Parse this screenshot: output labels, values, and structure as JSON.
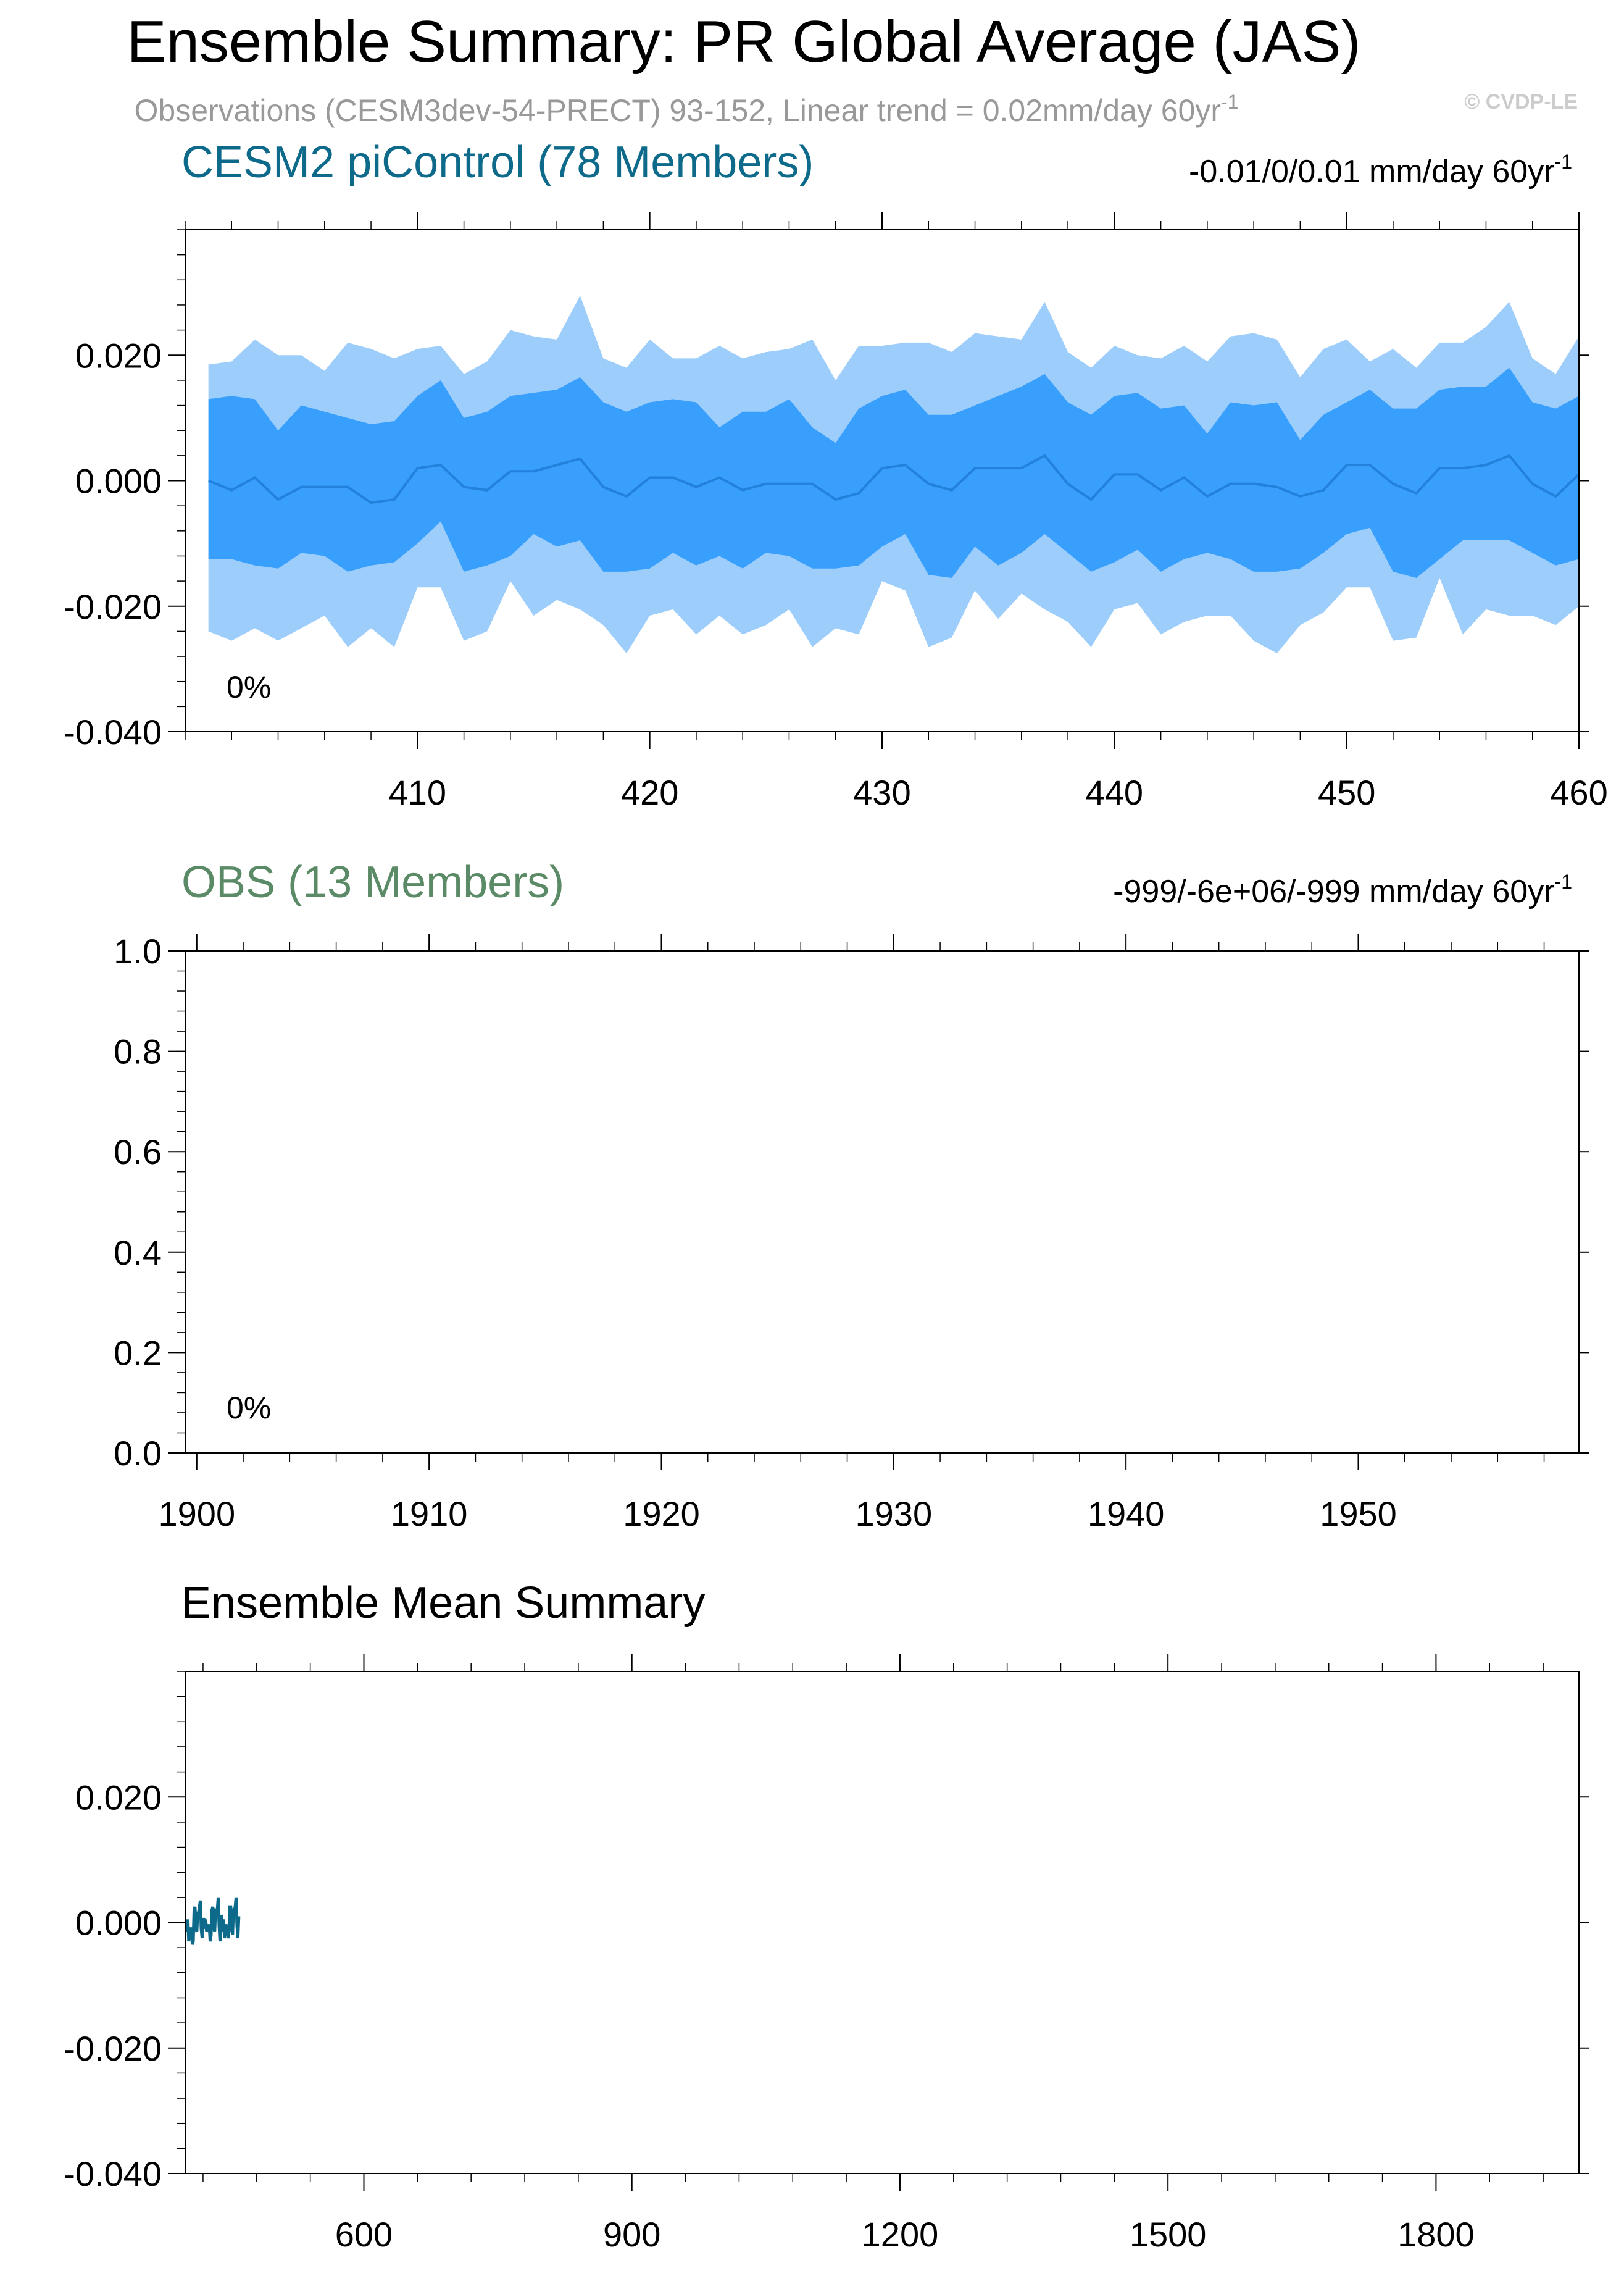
{
  "header": {
    "title": "Ensemble Summary: PR Global Average (JAS)",
    "subtitle": "Observations (CESM3dev-54-PRECT) 93-152, Linear trend = 0.02mm/day 60yr",
    "subtitle_sup": "-1",
    "watermark": "© CVDP-LE"
  },
  "colors": {
    "range_outer": "#9ccdfb",
    "range_inner": "#399ffc",
    "mean_line": "#2381de",
    "model_title": "#0e6a8a",
    "obs_title": "#5b8a66",
    "summary_line": "#0e6a8a",
    "subtitle": "#999999",
    "watermark": "#cccccc"
  },
  "chart_data": [
    {
      "type": "area",
      "title": "CESM2 piControl (78 Members)",
      "trend_label": "-0.01/0/0.01 mm/day 60yr",
      "trend_sup": "-1",
      "annotation": "0%",
      "xlim": [
        400,
        460
      ],
      "ylim": [
        -0.04,
        0.04
      ],
      "x_ticks": [
        410,
        420,
        430,
        440,
        450,
        460
      ],
      "y_ticks": [
        -0.04,
        -0.02,
        0.0,
        0.02
      ],
      "y_tick_labels": [
        "-0.040",
        "-0.020",
        "0.000",
        "0.020"
      ],
      "x": [
        401,
        402,
        403,
        404,
        405,
        406,
        407,
        408,
        409,
        410,
        411,
        412,
        413,
        414,
        415,
        416,
        417,
        418,
        419,
        420,
        421,
        422,
        423,
        424,
        425,
        426,
        427,
        428,
        429,
        430,
        431,
        432,
        433,
        434,
        435,
        436,
        437,
        438,
        439,
        440,
        441,
        442,
        443,
        444,
        445,
        446,
        447,
        448,
        449,
        450,
        451,
        452,
        453,
        454,
        455,
        456,
        457,
        458,
        459,
        460
      ],
      "series": [
        {
          "role": "max",
          "values": [
            0.0185,
            0.019,
            0.0225,
            0.02,
            0.02,
            0.0175,
            0.022,
            0.021,
            0.0195,
            0.021,
            0.0215,
            0.017,
            0.019,
            0.024,
            0.023,
            0.0225,
            0.0295,
            0.0195,
            0.018,
            0.0225,
            0.0195,
            0.0195,
            0.0215,
            0.0195,
            0.0205,
            0.021,
            0.0225,
            0.016,
            0.0215,
            0.0215,
            0.022,
            0.022,
            0.0205,
            0.0235,
            0.023,
            0.0225,
            0.0285,
            0.0205,
            0.018,
            0.0215,
            0.02,
            0.0195,
            0.0215,
            0.019,
            0.023,
            0.0235,
            0.0225,
            0.0165,
            0.021,
            0.0225,
            0.019,
            0.021,
            0.018,
            0.022,
            0.022,
            0.0245,
            0.0285,
            0.0195,
            0.017,
            0.023
          ]
        },
        {
          "role": "upper",
          "values": [
            0.013,
            0.0135,
            0.013,
            0.008,
            0.012,
            0.011,
            0.01,
            0.009,
            0.0095,
            0.0135,
            0.016,
            0.01,
            0.011,
            0.0135,
            0.014,
            0.0145,
            0.0165,
            0.0125,
            0.011,
            0.0125,
            0.013,
            0.0125,
            0.0085,
            0.011,
            0.011,
            0.013,
            0.0085,
            0.006,
            0.0115,
            0.0135,
            0.0145,
            0.0105,
            0.0105,
            0.012,
            0.0135,
            0.015,
            0.017,
            0.0125,
            0.0105,
            0.0135,
            0.014,
            0.0115,
            0.012,
            0.0075,
            0.0125,
            0.012,
            0.0125,
            0.0065,
            0.0105,
            0.0125,
            0.0145,
            0.0115,
            0.0115,
            0.0145,
            0.015,
            0.015,
            0.018,
            0.0125,
            0.0115,
            0.0135
          ]
        },
        {
          "role": "mean",
          "values": [
            0.0,
            -0.0015,
            0.0005,
            -0.003,
            -0.001,
            -0.001,
            -0.001,
            -0.0035,
            -0.003,
            0.002,
            0.0025,
            -0.001,
            -0.0015,
            0.0015,
            0.0015,
            0.0025,
            0.0035,
            -0.001,
            -0.0025,
            0.0005,
            0.0005,
            -0.001,
            0.0005,
            -0.0015,
            -0.0005,
            -0.0005,
            -0.0005,
            -0.003,
            -0.002,
            0.002,
            0.0025,
            -0.0005,
            -0.0015,
            0.002,
            0.002,
            0.002,
            0.004,
            -0.0005,
            -0.003,
            0.001,
            0.001,
            -0.0015,
            0.0005,
            -0.0025,
            -0.0005,
            -0.0005,
            -0.001,
            -0.0025,
            -0.0015,
            0.0025,
            0.0025,
            -0.0005,
            -0.002,
            0.002,
            0.002,
            0.0025,
            0.004,
            -0.0005,
            -0.0025,
            0.001
          ]
        },
        {
          "role": "lower",
          "values": [
            -0.0125,
            -0.0125,
            -0.0135,
            -0.014,
            -0.0115,
            -0.012,
            -0.0145,
            -0.0135,
            -0.013,
            -0.01,
            -0.0065,
            -0.0145,
            -0.0135,
            -0.012,
            -0.0085,
            -0.0105,
            -0.0095,
            -0.0145,
            -0.0145,
            -0.014,
            -0.0115,
            -0.0135,
            -0.012,
            -0.014,
            -0.0115,
            -0.012,
            -0.014,
            -0.014,
            -0.0135,
            -0.0105,
            -0.0085,
            -0.015,
            -0.0155,
            -0.0105,
            -0.0135,
            -0.0115,
            -0.0085,
            -0.0115,
            -0.0145,
            -0.013,
            -0.011,
            -0.0145,
            -0.0125,
            -0.0115,
            -0.0125,
            -0.0145,
            -0.0145,
            -0.014,
            -0.0115,
            -0.0085,
            -0.0075,
            -0.0145,
            -0.0155,
            -0.0125,
            -0.0095,
            -0.0095,
            -0.0095,
            -0.0115,
            -0.0135,
            -0.0125
          ]
        },
        {
          "role": "min",
          "values": [
            -0.024,
            -0.0255,
            -0.0235,
            -0.0255,
            -0.0235,
            -0.0215,
            -0.0265,
            -0.0235,
            -0.0265,
            -0.017,
            -0.017,
            -0.0255,
            -0.024,
            -0.016,
            -0.0215,
            -0.019,
            -0.0205,
            -0.023,
            -0.0275,
            -0.0215,
            -0.0205,
            -0.0245,
            -0.0215,
            -0.0245,
            -0.023,
            -0.0205,
            -0.0265,
            -0.0235,
            -0.0245,
            -0.016,
            -0.0175,
            -0.0265,
            -0.025,
            -0.0175,
            -0.022,
            -0.018,
            -0.0205,
            -0.0225,
            -0.0265,
            -0.0205,
            -0.0195,
            -0.0245,
            -0.0225,
            -0.0215,
            -0.0215,
            -0.0255,
            -0.0275,
            -0.023,
            -0.021,
            -0.017,
            -0.017,
            -0.0255,
            -0.025,
            -0.0155,
            -0.0245,
            -0.0205,
            -0.0215,
            -0.0215,
            -0.023,
            -0.02
          ]
        }
      ]
    },
    {
      "type": "line",
      "title": "OBS (13 Members)",
      "trend_label": "-999/-6e+06/-999 mm/day 60yr",
      "trend_sup": "-1",
      "annotation": "0%",
      "xlim": [
        1899.5,
        1959.5
      ],
      "ylim": [
        0.0,
        1.0
      ],
      "x_ticks": [
        1900,
        1910,
        1920,
        1930,
        1940,
        1950
      ],
      "y_ticks": [
        0.0,
        0.2,
        0.4,
        0.6,
        0.8,
        1.0
      ],
      "y_tick_labels": [
        "0.0",
        "0.2",
        "0.4",
        "0.6",
        "0.8",
        "1.0"
      ],
      "series": []
    },
    {
      "type": "line",
      "title": "Ensemble Mean Summary",
      "xlim": [
        400,
        1960
      ],
      "ylim": [
        -0.04,
        0.04
      ],
      "x_ticks": [
        600,
        900,
        1200,
        1500,
        1800
      ],
      "y_ticks": [
        -0.04,
        -0.02,
        0.0,
        0.02
      ],
      "y_tick_labels": [
        "-0.040",
        "-0.020",
        "0.000",
        "0.020"
      ],
      "series": [
        {
          "role": "ensemble-mean",
          "x_start": 401,
          "x_step": 1
        }
      ]
    }
  ]
}
